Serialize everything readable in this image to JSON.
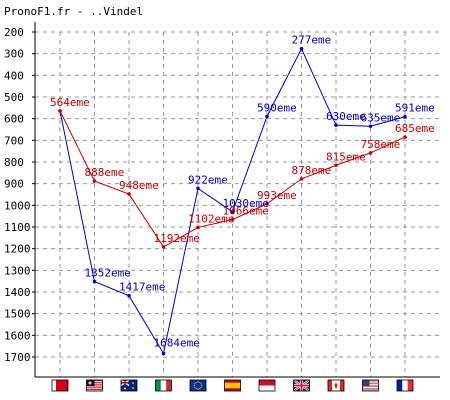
{
  "chart_data": {
    "type": "line",
    "title": "PronoF1.fr - ..Vindel",
    "xlabel": "",
    "ylabel": "",
    "ylim": [
      200,
      1700
    ],
    "y_inverted": true,
    "y_ticks": [
      200,
      300,
      400,
      500,
      600,
      700,
      800,
      900,
      1000,
      1100,
      1200,
      1300,
      1400,
      1500,
      1600,
      1700
    ],
    "grid": true,
    "legend": "none",
    "categories": [
      "Bahrain",
      "Malaysia",
      "Australia",
      "Italy",
      "Europe",
      "Spain",
      "Monaco",
      "Great Britain",
      "Canada",
      "United States",
      "France"
    ],
    "category_flags": [
      "bahrain-flag-icon",
      "malaysia-flag-icon",
      "australia-flag-icon",
      "italy-flag-icon",
      "europe-flag-icon",
      "spain-flag-icon",
      "monaco-flag-icon",
      "great-britain-flag-icon",
      "canada-flag-icon",
      "united-states-flag-icon",
      "france-flag-icon"
    ],
    "series": [
      {
        "color": "#0000cc",
        "values": [
          564,
          1352,
          1417,
          1684,
          922,
          1030,
          590,
          277,
          630,
          635,
          591
        ],
        "labels": [
          "",
          "1352eme",
          "1417eme",
          "1684eme",
          "922eme",
          "1030eme",
          "590eme",
          "277eme",
          "630eme",
          "635eme",
          "591eme"
        ]
      },
      {
        "color": "#cc0000",
        "values": [
          564,
          888,
          948,
          1192,
          1102,
          1066,
          993,
          878,
          815,
          758,
          685
        ],
        "labels": [
          "564eme",
          "888eme",
          "948eme",
          "1192eme",
          "1102eme",
          "1066eme",
          "993eme",
          "878eme",
          "815eme",
          "758eme",
          "685eme"
        ]
      }
    ]
  }
}
